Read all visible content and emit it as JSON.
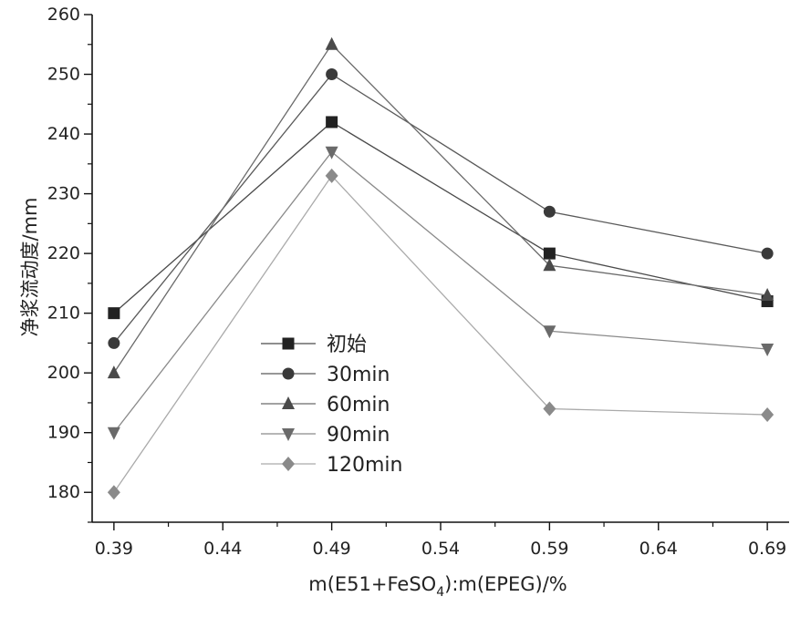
{
  "chart_data": {
    "type": "line",
    "title": "",
    "xlabel": "m(E51+FeSO4):m(EPEG)/%",
    "xlabel_parts": {
      "before_sub": "m(E51+FeSO",
      "sub": "4",
      "after_sub": "):m(EPEG)/%"
    },
    "ylabel": "净浆流动度/mm",
    "x": [
      0.39,
      0.49,
      0.59,
      0.69
    ],
    "xlim": [
      0.38,
      0.7
    ],
    "ylim": [
      175,
      260
    ],
    "x_ticks": [
      "0.39",
      "0.44",
      "0.49",
      "0.54",
      "0.59",
      "0.64",
      "0.69"
    ],
    "y_ticks": [
      "180",
      "190",
      "200",
      "210",
      "220",
      "230",
      "240",
      "250",
      "260"
    ],
    "grid": false,
    "legend_position": "lower-left",
    "series": [
      {
        "name": "初始",
        "values": [
          210,
          242,
          220,
          212
        ],
        "marker": "square",
        "color": "#222222",
        "line_color": "#4a4a4a"
      },
      {
        "name": "30min",
        "values": [
          205,
          250,
          227,
          220
        ],
        "marker": "circle",
        "color": "#3a3a3a",
        "line_color": "#5a5a5a"
      },
      {
        "name": "60min",
        "values": [
          200,
          255,
          218,
          213
        ],
        "marker": "triangle-up",
        "color": "#4a4a4a",
        "line_color": "#6a6a6a"
      },
      {
        "name": "90min",
        "values": [
          190,
          237,
          207,
          204
        ],
        "marker": "triangle-down",
        "color": "#6a6a6a",
        "line_color": "#8a8a8a"
      },
      {
        "name": "120min",
        "values": [
          180,
          233,
          194,
          193
        ],
        "marker": "diamond",
        "color": "#8a8a8a",
        "line_color": "#aaaaaa"
      }
    ]
  }
}
